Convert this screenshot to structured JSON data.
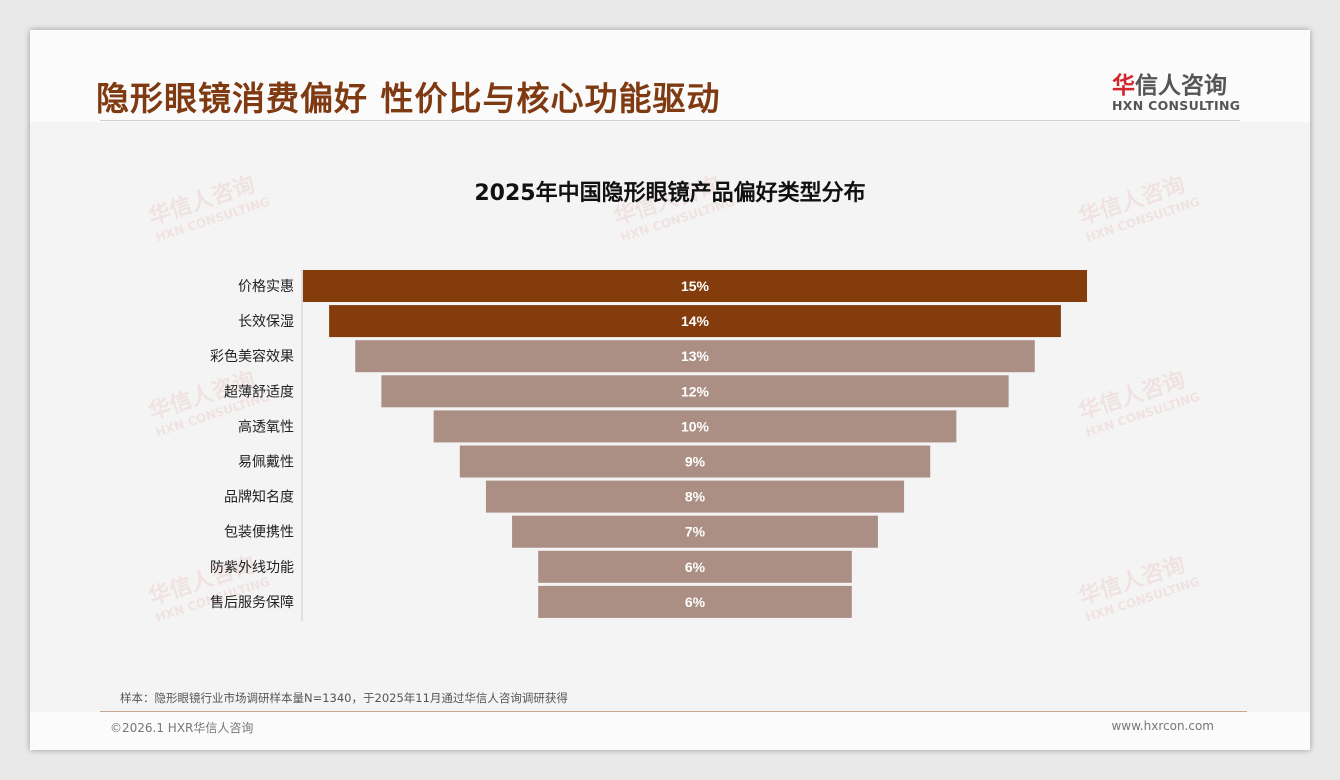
{
  "header": {
    "title": "隐形眼镜消费偏好 性价比与核心功能驱动",
    "logo_cn_accent": "华",
    "logo_cn": "信人咨询",
    "logo_en": "HXN CONSULTING"
  },
  "watermark": {
    "cn": "华信人咨询",
    "en": "HXN CONSULTING"
  },
  "chart_data": {
    "type": "bar",
    "orientation": "horizontal-funnel",
    "title": "2025年中国隐形眼镜产品偏好类型分布",
    "categories": [
      "价格实惠",
      "长效保湿",
      "彩色美容效果",
      "超薄舒适度",
      "高透氧性",
      "易佩戴性",
      "品牌知名度",
      "包装便携性",
      "防紫外线功能",
      "售后服务保障"
    ],
    "values": [
      15,
      14,
      13,
      12,
      10,
      9,
      8,
      7,
      6,
      6
    ],
    "labels": [
      "15%",
      "14%",
      "13%",
      "12%",
      "10%",
      "9%",
      "8%",
      "7%",
      "6%",
      "6%"
    ],
    "unit": "%",
    "highlight_count": 2,
    "colors": {
      "highlight": "#843c0c",
      "normal": "#ab8e84"
    }
  },
  "footer": {
    "note": "样本：隐形眼镜行业市场调研样本量N=1340，于2025年11月通过华信人咨询调研获得",
    "copyright": "©2026.1 HXR华信人咨询",
    "url": "www.hxrcon.com"
  }
}
